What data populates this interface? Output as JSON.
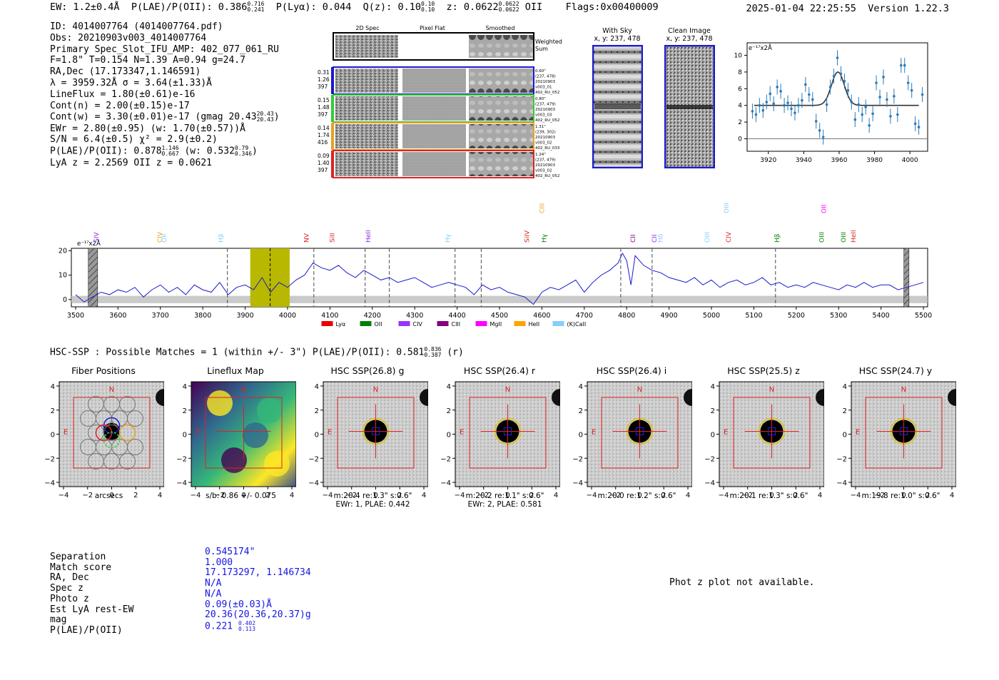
{
  "header": {
    "ew": "EW: 1.2±0.4Å",
    "plae_label": "P(LAE)/P(OII): 0.386",
    "plae_hi": "0.716",
    "plae_lo": "0.241",
    "plya": "P(Lyα): 0.044",
    "qz_label": "Q(z): 0.10",
    "qz_hi": "0.10",
    "qz_lo": "0.10",
    "z_label": "z: 0.0622",
    "z_hi": "0.0622",
    "z_lo": "0.0622",
    "z_line": "OII",
    "flags": "Flags:0x00400009",
    "timestamp": "2025-01-04 22:25:55",
    "version": "Version 1.22.3"
  },
  "info": {
    "id": "ID: 4014007764 (4014007764.pdf)",
    "obs": "Obs: 20210903v003_4014007764",
    "primary": "Primary Spec_Slot_IFU_AMP: 402_077_061_RU",
    "params": "F=1.8\"  T=0.154  N=1.39  A=0.94  g=24.7",
    "radec": "RA,Dec (17.173347,1.146591)",
    "lambda": "λ = 3959.32Å  σ = 3.64(±1.33)Å",
    "lineflux": "LineFlux = 1.80(±0.61)e-16",
    "contn": "Cont(n) = 2.00(±0.15)e-17",
    "contw": "Cont(w) = 3.30(±0.01)e-17 (gmag 20.43",
    "contw_hi": "20.43",
    "contw_lo": "20.43",
    "ewr": "EWr = 2.80(±0.95) (w: 1.70(±0.57))Å",
    "sn": "S/N = 6.4(±0.5)  χ² = 2.9(±0.2)",
    "plae": "P(LAE)/P(OII): 0.878",
    "plae_hi": "1.146",
    "plae_lo": "0.667",
    "plae_w": "(w: 0.532",
    "plae_w_hi": "0.79",
    "plae_w_lo": "0.346",
    "lyaz": "LyA z = 2.2569   OII z = 0.0621"
  },
  "spec2d": {
    "col_headers": [
      "2D Spec",
      "Pixel Flat",
      "Smoothed"
    ],
    "weighted_sum": "Weighted Sum",
    "rows": [
      {
        "left": [
          "0.31",
          "1.26",
          "397"
        ],
        "right": [
          "0.60\"",
          "(237, 478)",
          "20210903",
          "v003_01",
          "402_RU_052"
        ],
        "color": "#1a1acc"
      },
      {
        "left": [
          "0.15",
          "1.48",
          "397"
        ],
        "right": [
          "0.80\"",
          "(237, 479)",
          "20210903",
          "v003_03",
          "402_RU_052"
        ],
        "color": "#33cc33"
      },
      {
        "left": [
          "0.14",
          "1.74",
          "416"
        ],
        "right": [
          "1.31\"",
          "(239, 302)",
          "20210903",
          "v003_02",
          "402_RU_033"
        ],
        "color": "#e8a020"
      },
      {
        "left": [
          "0.09",
          "1.40",
          "397"
        ],
        "right": [
          "1.24\"",
          "(237, 479)",
          "20210903",
          "v003_02",
          "402_RU_052"
        ],
        "color": "#dd2222"
      }
    ]
  },
  "cutouts": {
    "with_sky_title": "With Sky",
    "with_sky_xy": "x, y: 237, 478",
    "clean_title": "Clean Image",
    "clean_xy": "x, y: 237, 478"
  },
  "fit_plot": {
    "unit": "e⁻¹⁷x2Å",
    "x_ticks": [
      3920,
      3940,
      3960,
      3980,
      4000
    ],
    "y_ticks": [
      0,
      2,
      4,
      6,
      8,
      10
    ],
    "xlim": [
      3908,
      4010
    ],
    "ylim": [
      -1.5,
      11.5
    ],
    "points": [
      [
        3911,
        3.3,
        0.9
      ],
      [
        3913,
        2.9,
        0.9
      ],
      [
        3915,
        4.0,
        0.9
      ],
      [
        3917,
        3.4,
        0.9
      ],
      [
        3919,
        4.4,
        0.9
      ],
      [
        3921,
        5.4,
        0.9
      ],
      [
        3923,
        4.2,
        0.9
      ],
      [
        3925,
        6.2,
        0.9
      ],
      [
        3927,
        5.7,
        0.9
      ],
      [
        3929,
        4.0,
        0.9
      ],
      [
        3931,
        4.3,
        0.9
      ],
      [
        3933,
        3.6,
        0.9
      ],
      [
        3935,
        3.1,
        0.9
      ],
      [
        3937,
        4.0,
        0.9
      ],
      [
        3939,
        4.6,
        0.9
      ],
      [
        3941,
        6.5,
        0.9
      ],
      [
        3943,
        5.3,
        0.9
      ],
      [
        3945,
        4.7,
        0.9
      ],
      [
        3947,
        2.1,
        0.9
      ],
      [
        3949,
        1.0,
        0.9
      ],
      [
        3951,
        0.2,
        0.9
      ],
      [
        3953,
        4.1,
        0.9
      ],
      [
        3955,
        6.2,
        0.9
      ],
      [
        3957,
        7.5,
        0.9
      ],
      [
        3959,
        9.7,
        0.9
      ],
      [
        3961,
        7.8,
        0.9
      ],
      [
        3963,
        6.9,
        0.9
      ],
      [
        3965,
        5.8,
        0.9
      ],
      [
        3967,
        4.4,
        0.9
      ],
      [
        3969,
        2.3,
        0.9
      ],
      [
        3971,
        4.1,
        0.9
      ],
      [
        3973,
        2.9,
        0.9
      ],
      [
        3975,
        3.8,
        0.9
      ],
      [
        3977,
        1.6,
        0.9
      ],
      [
        3979,
        3.0,
        0.9
      ],
      [
        3981,
        6.7,
        0.9
      ],
      [
        3983,
        5.0,
        0.9
      ],
      [
        3985,
        7.4,
        0.9
      ],
      [
        3987,
        4.7,
        0.9
      ],
      [
        3989,
        2.7,
        0.9
      ],
      [
        3991,
        5.1,
        0.9
      ],
      [
        3993,
        2.9,
        0.9
      ],
      [
        3995,
        8.8,
        0.9
      ],
      [
        3997,
        8.8,
        0.9
      ],
      [
        3999,
        6.7,
        0.9
      ],
      [
        4001,
        5.8,
        0.9
      ],
      [
        4003,
        1.8,
        0.9
      ],
      [
        4005,
        1.4,
        0.9
      ],
      [
        4007,
        5.3,
        0.9
      ]
    ],
    "model": {
      "continuum": 4.0,
      "peak": 8.0,
      "center": 3959.3,
      "sigma": 3.64,
      "x_start": 3912,
      "x_end": 4005
    }
  },
  "chart_data": {
    "type": "line",
    "title": "",
    "ylabel": "e⁻¹⁷x2Å",
    "xlim": [
      3490,
      5510
    ],
    "ylim": [
      -3,
      21
    ],
    "x_ticks": [
      3500,
      3600,
      3700,
      3800,
      3900,
      4000,
      4100,
      4200,
      4300,
      4400,
      4500,
      4600,
      4700,
      4800,
      4900,
      5000,
      5100,
      5200,
      5300,
      5400,
      5500
    ],
    "y_ticks": [
      0,
      10,
      20
    ],
    "highlight_band": [
      3912,
      4005
    ],
    "highlight_line": 3959,
    "hatched_bands": [
      [
        3530,
        3552
      ],
      [
        5454,
        5466
      ]
    ],
    "dashed_lines": [
      3858,
      4062,
      4183,
      4240,
      4395,
      4457,
      4786,
      4860,
      5151
    ],
    "series": [
      {
        "name": "spectrum",
        "color": "#1a1acc",
        "x": [
          3500,
          3520,
          3540,
          3560,
          3580,
          3600,
          3620,
          3640,
          3660,
          3680,
          3700,
          3720,
          3740,
          3760,
          3780,
          3800,
          3820,
          3840,
          3860,
          3880,
          3900,
          3920,
          3940,
          3960,
          3980,
          4000,
          4020,
          4040,
          4060,
          4080,
          4100,
          4120,
          4140,
          4160,
          4180,
          4200,
          4220,
          4240,
          4260,
          4280,
          4300,
          4320,
          4340,
          4360,
          4380,
          4400,
          4420,
          4440,
          4460,
          4480,
          4500,
          4520,
          4540,
          4560,
          4580,
          4600,
          4620,
          4640,
          4660,
          4680,
          4700,
          4720,
          4740,
          4760,
          4780,
          4790,
          4800,
          4810,
          4820,
          4840,
          4860,
          4880,
          4900,
          4920,
          4940,
          4960,
          4980,
          5000,
          5020,
          5040,
          5060,
          5080,
          5100,
          5120,
          5140,
          5160,
          5180,
          5200,
          5220,
          5240,
          5260,
          5280,
          5300,
          5320,
          5340,
          5360,
          5380,
          5400,
          5420,
          5440,
          5460,
          5480,
          5500
        ],
        "y": [
          2,
          -1,
          1,
          3,
          2,
          4,
          3,
          5,
          1,
          4,
          6,
          3,
          5,
          2,
          6,
          4,
          3,
          7,
          2,
          5,
          6,
          4,
          9,
          3,
          7,
          5,
          8,
          10,
          15,
          13,
          12,
          14,
          11,
          9,
          12,
          10,
          8,
          9,
          7,
          8,
          9,
          7,
          5,
          6,
          7,
          6,
          5,
          2,
          6,
          4,
          5,
          3,
          2,
          1,
          -2,
          3,
          5,
          4,
          6,
          8,
          3,
          7,
          10,
          12,
          15,
          19,
          16,
          6,
          18,
          14,
          12,
          11,
          9,
          8,
          7,
          9,
          6,
          8,
          5,
          7,
          8,
          6,
          7,
          9,
          6,
          7,
          5,
          6,
          5,
          7,
          6,
          5,
          4,
          6,
          5,
          7,
          5,
          6,
          6,
          4,
          5,
          6,
          7
        ]
      },
      {
        "name": "error",
        "color": "#aaaaaa",
        "x": [
          3500,
          3800,
          4200,
          4600,
          5000,
          5500
        ],
        "y": [
          2,
          2,
          2,
          2,
          2,
          2
        ]
      }
    ],
    "line_labels": [
      {
        "text": "SIV",
        "x": 3554,
        "color": "#8a2be2"
      },
      {
        "text": "CIV",
        "x": 3704,
        "color": "#e8a020"
      },
      {
        "text": "OII",
        "x": 3714,
        "color": "#87cefa"
      },
      {
        "text": "Hβ",
        "x": 3848,
        "color": "#87cefa"
      },
      {
        "text": "NV",
        "x": 4050,
        "color": "#dd2222"
      },
      {
        "text": "SiII",
        "x": 4110,
        "color": "#dd2222"
      },
      {
        "text": "HeII",
        "x": 4195,
        "color": "#8a2be2"
      },
      {
        "text": "Hγ",
        "x": 4383,
        "color": "#87cefa"
      },
      {
        "text": "CIII",
        "x": 4605,
        "color": "#e8a020",
        "level": "high"
      },
      {
        "text": "SiIV",
        "x": 4570,
        "color": "#dd2222"
      },
      {
        "text": "Hγ",
        "x": 4610,
        "color": "#008000"
      },
      {
        "text": "CII",
        "x": 4820,
        "color": "#800080"
      },
      {
        "text": "CII",
        "x": 4870,
        "color": "#8a2be2"
      },
      {
        "text": "Hδ",
        "x": 4885,
        "color": "#87cefa"
      },
      {
        "text": "OIII",
        "x": 4995,
        "color": "#87cefa"
      },
      {
        "text": "OIII",
        "x": 5040,
        "color": "#87cefa",
        "level": "high"
      },
      {
        "text": "CIV",
        "x": 5045,
        "color": "#dd2222"
      },
      {
        "text": "Hβ",
        "x": 5160,
        "color": "#008000"
      },
      {
        "text": "OIII",
        "x": 5265,
        "color": "#008000"
      },
      {
        "text": "OII",
        "x": 5270,
        "color": "#ff00ff",
        "level": "high"
      },
      {
        "text": "OIII",
        "x": 5316,
        "color": "#008000"
      },
      {
        "text": "HeII",
        "x": 5340,
        "color": "#dd2222"
      }
    ],
    "legend": [
      {
        "name": "Lyα",
        "color": "#ee0000"
      },
      {
        "name": "OII",
        "color": "#008000"
      },
      {
        "name": "CIV",
        "color": "#9933ff"
      },
      {
        "name": "CIII",
        "color": "#800080"
      },
      {
        "name": "MgII",
        "color": "#ff00ff"
      },
      {
        "name": "HeII",
        "color": "#ffa500"
      },
      {
        "name": "(K)CaII",
        "color": "#87cefa"
      }
    ]
  },
  "hsc": {
    "summary": "HSC-SSP : Possible Matches = 1 (within +/- 3\")  P(LAE)/P(OII): 0.581",
    "summary_hi": "0.836",
    "summary_lo": "0.387",
    "summary_band": "(r)",
    "panels": [
      {
        "title": "Fiber Positions",
        "caption1": "arcsecs",
        "caption2": ""
      },
      {
        "title": "Lineflux Map",
        "caption1": "s/b: 0.86 +/- 0.075",
        "caption2": ""
      },
      {
        "title": "HSC SSP(26.8) g",
        "caption1": "m:20.4  re:1.3\"  s:0.6\"",
        "caption2": "EWr: 1, PLAE: 0.442"
      },
      {
        "title": "HSC SSP(26.4) r",
        "caption1": "m:20.2  re:1.1\"  s:0.6\"",
        "caption2": "EWr: 2, PLAE: 0.581"
      },
      {
        "title": "HSC SSP(26.4) i",
        "caption1": "m:20.0  re:1.2\"  s:0.6\"",
        "caption2": ""
      },
      {
        "title": "HSC SSP(25.5) z",
        "caption1": "m:20.1  re:1.3\"  s:0.6\"",
        "caption2": ""
      },
      {
        "title": "HSC SSP(24.7) y",
        "caption1": "m:19.8  re:1.0\"  s:0.6\"",
        "caption2": ""
      }
    ],
    "axis_ticks": [
      "−4",
      "−2",
      "0",
      "2",
      "4"
    ],
    "north": "N",
    "east": "E"
  },
  "match": {
    "labels": [
      "Separation",
      "Match score",
      "RA, Dec",
      "Spec z",
      "Photo z",
      "Est LyA rest-EW",
      "mag",
      "P(LAE)/P(OII)"
    ],
    "values": [
      "0.545174\"",
      "1.000",
      "17.173297, 1.146734",
      "N/A",
      "N/A",
      "0.09(±0.03)Å",
      "20.36(20.36,20.37)g",
      "0.221"
    ],
    "plae_hi": "0.402",
    "plae_lo": "0.113",
    "photz_note": "Phot z plot not available."
  }
}
